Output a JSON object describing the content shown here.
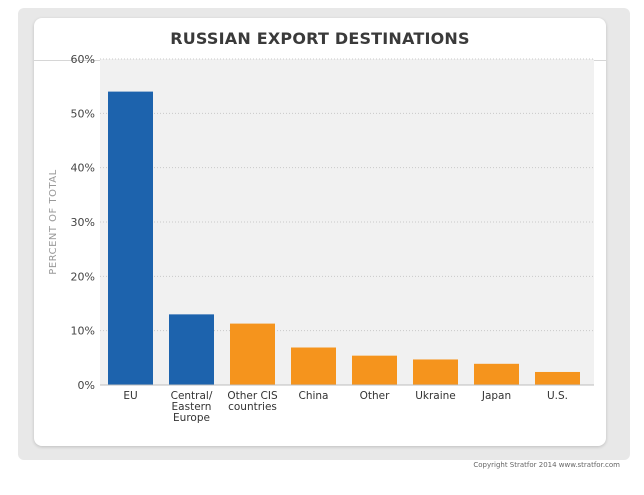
{
  "chart_data": {
    "type": "bar",
    "title": "RUSSIAN EXPORT DESTINATIONS",
    "ylabel": "PERCENT OF TOTAL",
    "xlabel": "",
    "ylim": [
      0,
      60
    ],
    "yticks": [
      0,
      10,
      20,
      30,
      40,
      50,
      60
    ],
    "ytick_labels": [
      "0%",
      "10%",
      "20%",
      "30%",
      "40%",
      "50%",
      "60%"
    ],
    "categories": [
      [
        "EU"
      ],
      [
        "Central/",
        "Eastern",
        "Europe"
      ],
      [
        "Other CIS",
        "countries"
      ],
      [
        "China"
      ],
      [
        "Other"
      ],
      [
        "Ukraine"
      ],
      [
        "Japan"
      ],
      [
        "U.S."
      ]
    ],
    "values": [
      54,
      13,
      11.3,
      6.9,
      5.4,
      4.7,
      3.9,
      2.4
    ],
    "bar_colors": [
      "#1d63ad",
      "#1d63ad",
      "#f5941d",
      "#f5941d",
      "#f5941d",
      "#f5941d",
      "#f5941d",
      "#f5941d"
    ],
    "grid": true
  },
  "footer": {
    "copyright": "Copyright Stratfor 2014   www.stratfor.com"
  }
}
